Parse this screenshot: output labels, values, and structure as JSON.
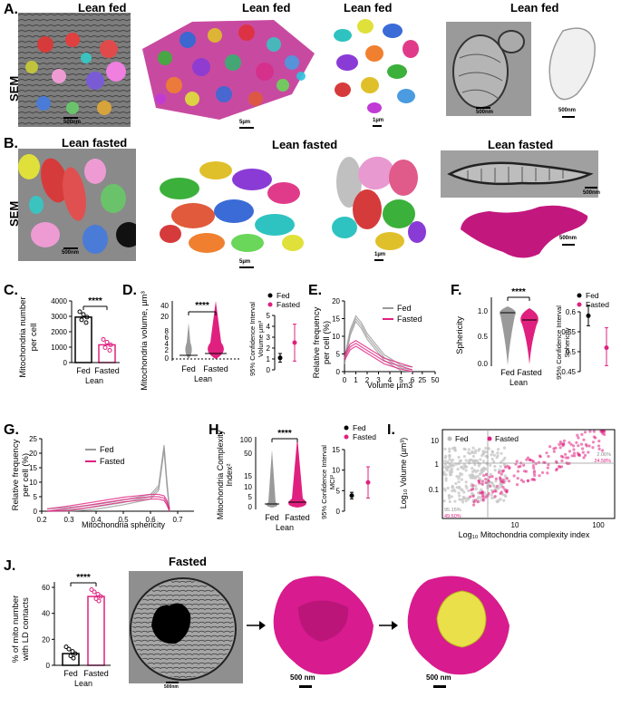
{
  "panels": {
    "A": {
      "letter": "A.",
      "t1": "Lean fed",
      "t2": "Lean fed",
      "t3": "Lean fed",
      "sem": "SEM",
      "s1": "500nm",
      "s2": "5µm",
      "s3": "1µm",
      "s4": "500nm",
      "s5": "500nm"
    },
    "B": {
      "letter": "B.",
      "t1": "Lean fasted",
      "t2": "Lean fasted",
      "t3": "Lean fasted",
      "sem": "SEM",
      "s1": "500nm",
      "s2": "5µm",
      "s3": "1µm",
      "s4": "500nm",
      "s5": "500nm"
    },
    "C": {
      "letter": "C.",
      "ylabel1": "Mitochondria number",
      "ylabel2": "per cell",
      "sig": "****",
      "xcats": [
        "Fed",
        "Fasted"
      ],
      "xgroup": "Lean"
    },
    "D": {
      "letter": "D.",
      "ylabel": "Mitochondria volume, µm³",
      "sig": "****",
      "xcats": [
        "Fed",
        "Fasted"
      ],
      "xgroup": "Lean",
      "ci_label1": "95% Confidence Interval",
      "ci_label2": "Volume µm³",
      "legend": [
        "Fed",
        "Fasted"
      ]
    },
    "E": {
      "letter": "E.",
      "ylabel1": "Relative frequency",
      "ylabel2": "per cell (%)",
      "xlabel": "Volume µm3",
      "legend": [
        "Fed",
        "Fasted"
      ]
    },
    "F": {
      "letter": "F.",
      "ylabel": "Sphericity",
      "sig": "****",
      "xcats": [
        "Fed",
        "Fasted"
      ],
      "xgroup": "Lean",
      "ci_label1": "95% Confidence Interval",
      "ci_label2": "Sphericity",
      "legend": [
        "Fed",
        "Fasted"
      ]
    },
    "G": {
      "letter": "G.",
      "ylabel1": "Relative frequency",
      "ylabel2": "per cell (%)",
      "xlabel": "Mitochondria sphericity",
      "legend": [
        "Fed",
        "Fasted"
      ]
    },
    "H": {
      "letter": "H.",
      "ylabel1": "Mitochondria Complexity",
      "ylabel2": "Index²",
      "sig": "****",
      "xcats": [
        "Fed",
        "Fasted"
      ],
      "xgroup": "Lean",
      "ci_label1": "95% Confidence Interval",
      "ci_label2": "MCI²",
      "legend": [
        "Fed",
        "Fasted"
      ]
    },
    "I": {
      "letter": "I.",
      "ylabel": "Log₁₀ Volume (µm³)",
      "xlabel": "Log₁₀ Mitochondria complexity index",
      "legend": [
        "Fed",
        "Fasted"
      ],
      "q1": "2.06%",
      "q2": "24.58%",
      "q3": "95.15%",
      "q4": "49.60%"
    },
    "J": {
      "letter": "J.",
      "ylabel1": "% of mito number",
      "ylabel2": "with LD contacts",
      "sig": "****",
      "xcats": [
        "Fed",
        "Fasted"
      ],
      "xgroup": "Lean",
      "title": "Fasted",
      "s1": "500nm",
      "s2": "500 nm",
      "s3": "500 nm"
    }
  },
  "colors": {
    "fed": "#9a9a9a",
    "fasted": "#e0207f",
    "magenta": "#d81b8e",
    "yellow": "#e9e04a"
  },
  "chart_data": [
    {
      "panel": "C",
      "type": "bar",
      "categories": [
        "Fed",
        "Fasted"
      ],
      "values": [
        2950,
        1150
      ],
      "yticks": [
        0,
        1000,
        2000,
        3000,
        4000
      ],
      "ylim": [
        0,
        4000
      ]
    },
    {
      "panel": "D-ci",
      "type": "scatter",
      "categories": [
        "Fed",
        "Fasted"
      ],
      "values": [
        1.1,
        2.5
      ],
      "ci": [
        [
          0.7,
          1.5
        ],
        [
          0.8,
          4.2
        ]
      ],
      "yticks": [
        0,
        1,
        2,
        3,
        4,
        5
      ],
      "ylim": [
        0,
        5
      ]
    },
    {
      "panel": "E",
      "type": "line",
      "xticks": [
        0,
        1,
        2,
        3,
        4,
        5,
        6,
        25,
        50
      ],
      "yticks": [
        0,
        5,
        10,
        15,
        20
      ],
      "ylim": [
        0,
        20
      ],
      "series": [
        {
          "name": "Fed",
          "x": [
            0,
            0.5,
            1,
            1.5,
            2,
            2.5,
            3,
            3.5,
            4,
            5,
            6
          ],
          "y": [
            3,
            11,
            15,
            13,
            10,
            8,
            6,
            4,
            3,
            1,
            0.5
          ]
        },
        {
          "name": "Fasted",
          "x": [
            0,
            0.5,
            1,
            1.5,
            2,
            2.5,
            3,
            3.5,
            4,
            5,
            6
          ],
          "y": [
            4,
            7,
            8,
            7,
            6,
            5,
            4,
            3,
            2.5,
            1.5,
            0.5
          ]
        }
      ]
    },
    {
      "panel": "F-ci",
      "type": "scatter",
      "categories": [
        "Fed",
        "Fasted"
      ],
      "values": [
        0.59,
        0.51
      ],
      "ci": [
        [
          0.565,
          0.615
        ],
        [
          0.465,
          0.56
        ]
      ],
      "yticks": [
        0.45,
        0.5,
        0.55,
        0.6
      ],
      "ylim": [
        0.45,
        0.6
      ]
    },
    {
      "panel": "G",
      "type": "line",
      "xticks": [
        0.2,
        0.3,
        0.4,
        0.5,
        0.6,
        0.7
      ],
      "yticks": [
        0,
        5,
        10,
        15,
        20,
        25
      ],
      "ylim": [
        0,
        25
      ],
      "series": [
        {
          "name": "Fed",
          "x": [
            0.22,
            0.3,
            0.4,
            0.5,
            0.55,
            0.6,
            0.63,
            0.65,
            0.66,
            0.67
          ],
          "y": [
            0,
            0.5,
            1.5,
            3,
            4,
            5,
            8,
            22,
            10,
            0
          ]
        },
        {
          "name": "Fasted",
          "x": [
            0.22,
            0.3,
            0.4,
            0.5,
            0.55,
            0.6,
            0.63,
            0.65,
            0.66,
            0.67
          ],
          "y": [
            0,
            1,
            2.5,
            4,
            4.5,
            5,
            5,
            4.5,
            3,
            0
          ]
        }
      ]
    },
    {
      "panel": "H-ci",
      "type": "scatter",
      "categories": [
        "Fed",
        "Fasted"
      ],
      "values": [
        3.8,
        7
      ],
      "ci": [
        [
          3,
          4.6
        ],
        [
          3.2,
          10.8
        ]
      ],
      "yticks": [
        0,
        5,
        10,
        15
      ],
      "ylim": [
        0,
        15
      ]
    },
    {
      "panel": "J",
      "type": "bar",
      "categories": [
        "Fed",
        "Fasted"
      ],
      "values": [
        9,
        53
      ],
      "yticks": [
        0,
        20,
        40,
        60
      ],
      "ylim": [
        0,
        60
      ]
    }
  ]
}
